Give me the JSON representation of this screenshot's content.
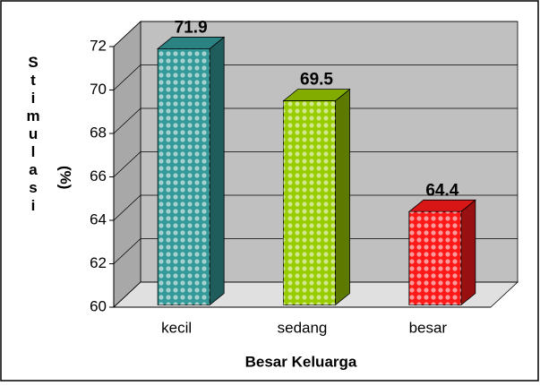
{
  "chart_data": {
    "type": "bar3d",
    "ylabel": "Stimulasi",
    "ylabel_unit": "(%)",
    "xlabel": "Besar Keluarga",
    "categories": [
      "kecil",
      "sedang",
      "besar"
    ],
    "values": [
      71.9,
      69.5,
      64.4
    ],
    "colors": [
      "#339999",
      "#99cc00",
      "#ff1a1a"
    ],
    "ylim": [
      60,
      72
    ],
    "yticks": [
      60,
      62,
      64,
      66,
      68,
      70,
      72
    ],
    "grid": true
  }
}
